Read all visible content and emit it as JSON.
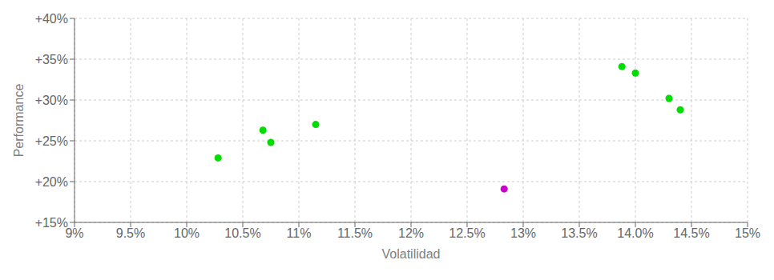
{
  "chart_data": {
    "type": "scatter",
    "xlabel": "Volatilidad",
    "ylabel": "Performance",
    "x": [
      0.1028,
      0.1068,
      0.1075,
      0.1115,
      0.1283,
      0.1388,
      0.14,
      0.143,
      0.144
    ],
    "values": [
      0.229,
      0.263,
      0.248,
      0.27,
      0.191,
      0.341,
      0.333,
      0.302,
      0.288
    ],
    "colors": [
      "#00dd00",
      "#00dd00",
      "#00dd00",
      "#00dd00",
      "#cc00cc",
      "#00dd00",
      "#00dd00",
      "#00dd00",
      "#00dd00"
    ],
    "xlim": [
      0.09,
      0.15
    ],
    "ylim": [
      0.15,
      0.4
    ],
    "xticks": [
      {
        "value": 0.09,
        "label": "9%"
      },
      {
        "value": 0.095,
        "label": "9.5%"
      },
      {
        "value": 0.1,
        "label": "10%"
      },
      {
        "value": 0.105,
        "label": "10.5%"
      },
      {
        "value": 0.11,
        "label": "11%"
      },
      {
        "value": 0.115,
        "label": "11.5%"
      },
      {
        "value": 0.12,
        "label": "12%"
      },
      {
        "value": 0.125,
        "label": "12.5%"
      },
      {
        "value": 0.13,
        "label": "13%"
      },
      {
        "value": 0.135,
        "label": "13.5%"
      },
      {
        "value": 0.14,
        "label": "14.0%"
      },
      {
        "value": 0.145,
        "label": "14.5%"
      },
      {
        "value": 0.15,
        "label": "15%"
      }
    ],
    "yticks": [
      {
        "value": 0.15,
        "label": "+15%"
      },
      {
        "value": 0.2,
        "label": "+20%"
      },
      {
        "value": 0.25,
        "label": "+25%"
      },
      {
        "value": 0.3,
        "label": "+30%"
      },
      {
        "value": 0.35,
        "label": "+35%"
      },
      {
        "value": 0.4,
        "label": "+40%"
      }
    ],
    "grid": true
  }
}
